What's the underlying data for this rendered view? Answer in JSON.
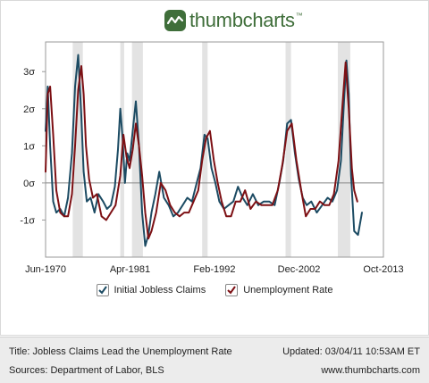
{
  "brand": {
    "name": "thumbcharts",
    "tm": "™",
    "color": "#3f6e3a"
  },
  "footer": {
    "title": "Title: Jobless Claims Lead the Unemployment Rate",
    "updated": "Updated: 03/04/11 10:53AM ET",
    "sources": "Sources: Department of Labor, BLS",
    "website": "www.thumbcharts.com"
  },
  "colors": {
    "claims": "#1c4b63",
    "unemployment": "#7d1014",
    "recession": "#e3e3e3",
    "zero_line": "#888888",
    "axis": "#999999"
  },
  "chart_data": {
    "type": "line",
    "x_range": [
      1970.42,
      2013.75
    ],
    "ylim": [
      -2.0,
      3.8
    ],
    "y_ticks": [
      {
        "value": 3,
        "label": "3σ"
      },
      {
        "value": 2,
        "label": "2σ"
      },
      {
        "value": 1,
        "label": "1σ"
      },
      {
        "value": 0,
        "label": "0σ"
      },
      {
        "value": -1,
        "label": "-1σ"
      }
    ],
    "x_ticks": [
      {
        "value": 1970.42,
        "label": "Jun-1970"
      },
      {
        "value": 1981.25,
        "label": "Apr-1981"
      },
      {
        "value": 1992.08,
        "label": "Feb-1992"
      },
      {
        "value": 2002.92,
        "label": "Dec-2002"
      },
      {
        "value": 2013.75,
        "label": "Oct-2013"
      }
    ],
    "recessions": [
      [
        1973.9,
        1975.2
      ],
      [
        1980.0,
        1980.5
      ],
      [
        1981.5,
        1982.9
      ],
      [
        1990.5,
        1991.2
      ],
      [
        2001.2,
        2001.9
      ],
      [
        2007.9,
        2009.5
      ]
    ],
    "legend_position": "bottom",
    "grid": false,
    "series": [
      {
        "name": "Initial Jobless Claims",
        "color": "#1c4b63",
        "x": [
          1970.42,
          1970.7,
          1971.0,
          1971.4,
          1971.8,
          1972.3,
          1972.8,
          1973.3,
          1973.8,
          1974.2,
          1974.6,
          1975.0,
          1975.3,
          1975.7,
          1976.2,
          1976.7,
          1977.2,
          1977.8,
          1978.3,
          1978.8,
          1979.3,
          1979.7,
          1980.0,
          1980.3,
          1980.6,
          1980.9,
          1981.2,
          1981.6,
          1982.0,
          1982.4,
          1982.8,
          1983.2,
          1983.6,
          1984.0,
          1984.5,
          1985.0,
          1985.6,
          1986.2,
          1986.8,
          1987.4,
          1988.0,
          1988.6,
          1989.2,
          1989.8,
          1990.3,
          1990.8,
          1991.2,
          1991.7,
          1992.2,
          1992.7,
          1993.3,
          1993.9,
          1994.5,
          1995.1,
          1995.7,
          1996.3,
          1997.0,
          1997.7,
          1998.4,
          1999.1,
          1999.8,
          2000.4,
          2000.9,
          2001.4,
          2001.9,
          2002.4,
          2002.9,
          2003.4,
          2003.9,
          2004.5,
          2005.2,
          2005.9,
          2006.6,
          2007.2,
          2007.8,
          2008.3,
          2008.7,
          2009.0,
          2009.3,
          2009.6,
          2010.0,
          2010.5,
          2011.0
        ],
        "values": [
          1.4,
          2.6,
          1.0,
          -0.5,
          -0.8,
          -0.7,
          -0.9,
          -0.4,
          0.8,
          2.6,
          3.45,
          1.8,
          0.3,
          -0.5,
          -0.4,
          -0.8,
          -0.3,
          -0.5,
          -0.7,
          -0.6,
          -0.1,
          0.9,
          2.0,
          1.2,
          0.0,
          0.8,
          0.6,
          1.4,
          2.2,
          1.0,
          -0.8,
          -1.7,
          -1.4,
          -0.8,
          -0.3,
          0.3,
          -0.4,
          -0.6,
          -0.9,
          -0.8,
          -0.6,
          -0.4,
          -0.5,
          0.0,
          0.4,
          1.3,
          1.2,
          0.4,
          0.0,
          -0.5,
          -0.7,
          -0.6,
          -0.5,
          -0.1,
          -0.4,
          -0.6,
          -0.3,
          -0.6,
          -0.5,
          -0.5,
          -0.6,
          0.0,
          0.6,
          1.6,
          1.7,
          0.8,
          0.1,
          -0.4,
          -0.6,
          -0.5,
          -0.8,
          -0.6,
          -0.4,
          -0.5,
          -0.2,
          0.6,
          2.2,
          3.3,
          2.4,
          0.2,
          -1.3,
          -1.4,
          -0.8
        ]
      },
      {
        "name": "Unemployment Rate",
        "color": "#7d1014",
        "x": [
          1970.42,
          1970.7,
          1971.0,
          1971.4,
          1971.8,
          1972.3,
          1972.8,
          1973.3,
          1973.8,
          1974.2,
          1974.6,
          1975.0,
          1975.3,
          1975.6,
          1976.0,
          1976.5,
          1977.0,
          1977.6,
          1978.2,
          1978.8,
          1979.4,
          1980.0,
          1980.4,
          1980.8,
          1981.2,
          1981.6,
          1982.0,
          1982.4,
          1982.8,
          1983.2,
          1983.6,
          1984.0,
          1984.6,
          1985.2,
          1985.8,
          1986.4,
          1987.0,
          1987.6,
          1988.2,
          1988.8,
          1989.4,
          1990.0,
          1990.5,
          1991.0,
          1991.5,
          1992.0,
          1992.5,
          1993.0,
          1993.6,
          1994.2,
          1994.8,
          1995.4,
          1996.0,
          1996.7,
          1997.4,
          1998.1,
          1998.8,
          1999.5,
          2000.2,
          2000.8,
          2001.4,
          2002.0,
          2002.6,
          2003.2,
          2003.8,
          2004.4,
          2005.0,
          2005.6,
          2006.2,
          2006.8,
          2007.4,
          2008.0,
          2008.5,
          2008.9,
          2009.3,
          2009.7,
          2010.0,
          2010.4
        ],
        "values": [
          0.3,
          2.4,
          2.6,
          1.3,
          -0.2,
          -0.8,
          -0.9,
          -0.9,
          -0.3,
          1.0,
          2.5,
          3.15,
          2.4,
          1.0,
          0.1,
          -0.4,
          -0.3,
          -0.9,
          -1.0,
          -0.8,
          -0.6,
          0.2,
          1.3,
          0.7,
          0.4,
          0.9,
          1.6,
          1.0,
          0.2,
          -0.8,
          -1.5,
          -1.3,
          -0.8,
          0.0,
          -0.2,
          -0.6,
          -0.8,
          -0.9,
          -0.8,
          -0.8,
          -0.5,
          -0.2,
          0.6,
          1.2,
          1.4,
          0.6,
          0.0,
          -0.5,
          -0.9,
          -0.9,
          -0.5,
          -0.5,
          -0.2,
          -0.7,
          -0.5,
          -0.6,
          -0.6,
          -0.6,
          -0.2,
          0.5,
          1.4,
          1.6,
          0.6,
          -0.2,
          -0.9,
          -0.7,
          -0.7,
          -0.5,
          -0.6,
          -0.6,
          -0.3,
          0.6,
          2.1,
          3.25,
          2.0,
          0.4,
          -0.2,
          -0.5
        ]
      }
    ]
  }
}
